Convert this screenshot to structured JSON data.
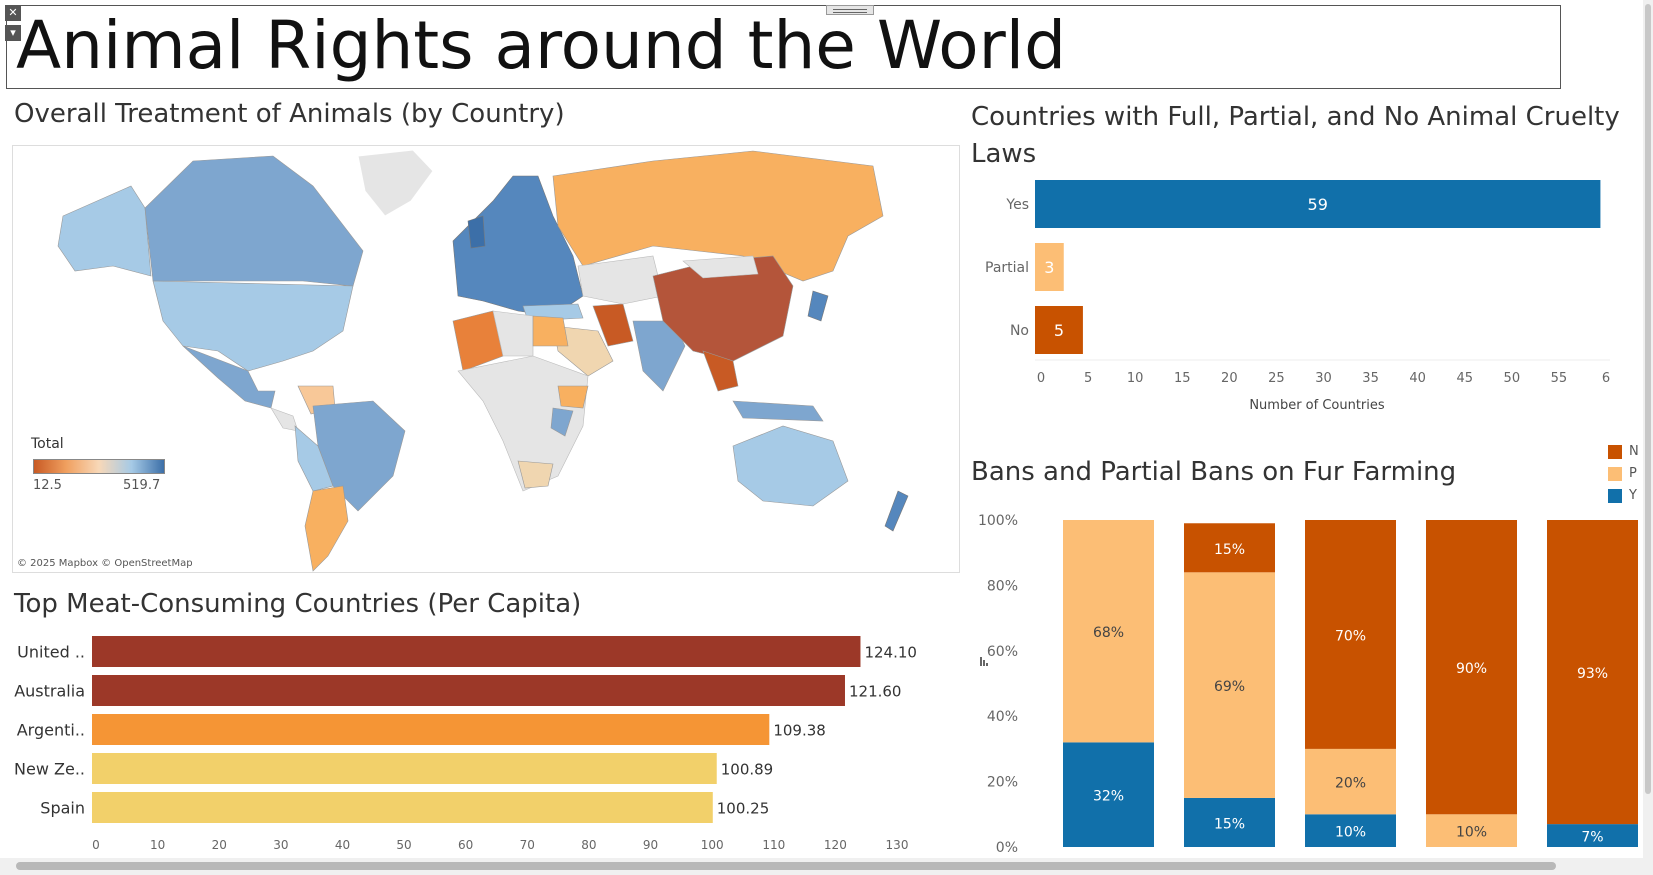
{
  "dashboard": {
    "title": "Animal Rights around the World",
    "close_glyph": "✕",
    "menu_glyph": "▾"
  },
  "map": {
    "title": "Overall Treatment of Animals (by Country)",
    "legend_title": "Total",
    "legend_min": "12.5",
    "legend_max": "519.7",
    "attribution": "© 2025 Mapbox © OpenStreetMap",
    "colors": {
      "low": "#c85a24",
      "mid": "#f8c898",
      "mid2": "#a6cae6",
      "high": "#3c6fa8",
      "nodata": "#e5e5e5"
    }
  },
  "chart_data": [
    {
      "id": "cruelty",
      "type": "bar",
      "orientation": "horizontal",
      "title": "Countries with Full, Partial, and No Animal Cruelty Laws",
      "categories": [
        "Yes",
        "Partial",
        "No"
      ],
      "values": [
        59,
        3,
        5
      ],
      "colors": [
        "#1170aa",
        "#fcbe75",
        "#c85200"
      ],
      "xlabel": "Number of Countries",
      "xticks": [
        "0",
        "5",
        "10",
        "15",
        "20",
        "25",
        "30",
        "35",
        "40",
        "45",
        "50",
        "55",
        "6"
      ],
      "xlim": [
        0,
        60
      ],
      "grid": false
    },
    {
      "id": "fur",
      "type": "bar",
      "stacked": "100%",
      "title": "Bans and Partial Bans on Fur Farming",
      "categories": [
        "",
        "",
        "",
        "",
        ""
      ],
      "series": [
        {
          "values": [
            32,
            15,
            10,
            0,
            7
          ],
          "labels": [
            "32%",
            "15%",
            "10%",
            "",
            "7%"
          ],
          "color": "#1170aa"
        },
        {
          "values": [
            68,
            69,
            20,
            10,
            0
          ],
          "labels": [
            "68%",
            "69%",
            "20%",
            "10%",
            ""
          ],
          "color": "#fcbe75"
        },
        {
          "values": [
            0,
            15,
            70,
            90,
            93
          ],
          "labels": [
            "",
            "15%",
            "70%",
            "90%",
            "93%"
          ],
          "color": "#c85200"
        }
      ],
      "yticks": [
        "0%",
        "20%",
        "40%",
        "60%",
        "80%",
        "100%"
      ],
      "ylim": [
        0,
        100
      ],
      "legend_labels": [
        "N",
        "P",
        "Y"
      ],
      "legend_colors": [
        "#c85200",
        "#fcbe75",
        "#1170aa"
      ],
      "legend": "top-right"
    },
    {
      "id": "meat",
      "type": "bar",
      "orientation": "horizontal",
      "title": "Top Meat-Consuming Countries (Per Capita)",
      "categories": [
        "United ..",
        "Australia",
        "Argenti..",
        "New Ze..",
        "Spain"
      ],
      "values": [
        124.1,
        121.6,
        109.38,
        100.89,
        100.25
      ],
      "labels": [
        "124.10",
        "121.60",
        "109.38",
        "100.89",
        "100.25"
      ],
      "colors": [
        "#9c3828",
        "#9c3828",
        "#f59535",
        "#f2d06a",
        "#f2d06a"
      ],
      "xticks": [
        "0",
        "10",
        "20",
        "30",
        "40",
        "50",
        "60",
        "70",
        "80",
        "90",
        "100",
        "110",
        "120",
        "130"
      ],
      "xlim": [
        0,
        130
      ],
      "grid": false
    }
  ]
}
